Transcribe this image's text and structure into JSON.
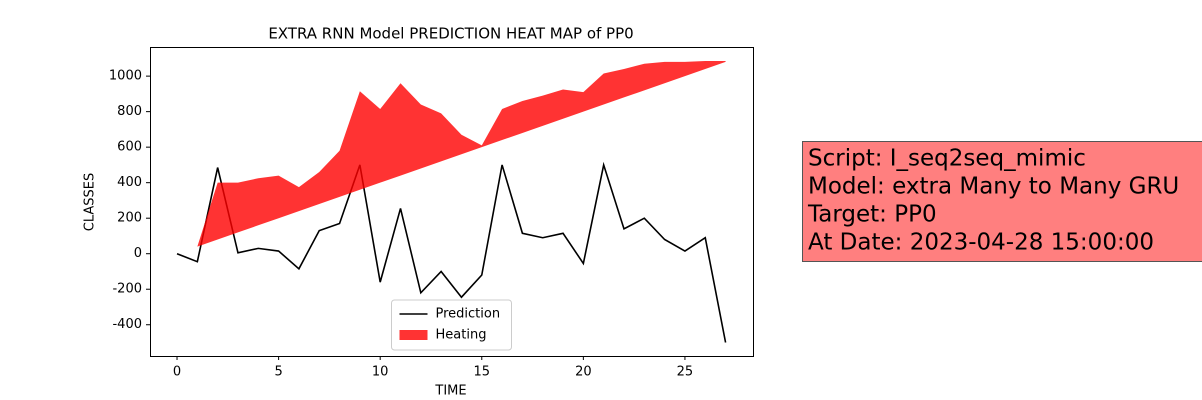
{
  "chart_data": {
    "type": "line",
    "title": "EXTRA RNN Model PREDICTION HEAT MAP of PP0",
    "xlabel": "TIME",
    "ylabel": "CLASSES",
    "x": [
      0,
      1,
      2,
      3,
      4,
      5,
      6,
      7,
      8,
      9,
      10,
      11,
      12,
      13,
      14,
      15,
      16,
      17,
      18,
      19,
      20,
      21,
      22,
      23,
      24,
      25,
      26,
      27
    ],
    "series": [
      {
        "name": "Prediction",
        "color": "#000000",
        "kind": "line",
        "values": [
          0,
          -45,
          485,
          5,
          30,
          15,
          -85,
          130,
          170,
          500,
          -160,
          255,
          -220,
          -100,
          -245,
          -120,
          500,
          115,
          90,
          115,
          -55,
          500,
          140,
          200,
          80,
          15,
          90,
          -500
        ]
      },
      {
        "name": "Heating",
        "color": "#ff0000",
        "alpha": 0.8,
        "kind": "band",
        "high": [
          0,
          40,
          400,
          400,
          425,
          440,
          375,
          460,
          580,
          915,
          815,
          960,
          840,
          790,
          670,
          610,
          815,
          860,
          890,
          925,
          910,
          1015,
          1040,
          1070,
          1080,
          1080,
          1085,
          1085
        ],
        "low": [
          0,
          40,
          80,
          120,
          160,
          200,
          240,
          280,
          320,
          360,
          400,
          440,
          480,
          520,
          560,
          600,
          640,
          680,
          720,
          760,
          800,
          840,
          880,
          920,
          960,
          1000,
          1040,
          1080
        ]
      }
    ],
    "xlim": [
      -1.33,
      28.35
    ],
    "xticks": [
      0,
      5,
      10,
      15,
      20,
      25
    ],
    "ylim": [
      -576,
      1164
    ],
    "yticks": [
      -400,
      -200,
      0,
      200,
      400,
      600,
      800,
      1000
    ],
    "legend": "lower center",
    "annotation": [
      "Script: I_seq2seq_mimic",
      "Model: extra Many to Many GRU",
      "Target: PP0",
      "At Date: 2023-04-28 15:00:00"
    ]
  }
}
